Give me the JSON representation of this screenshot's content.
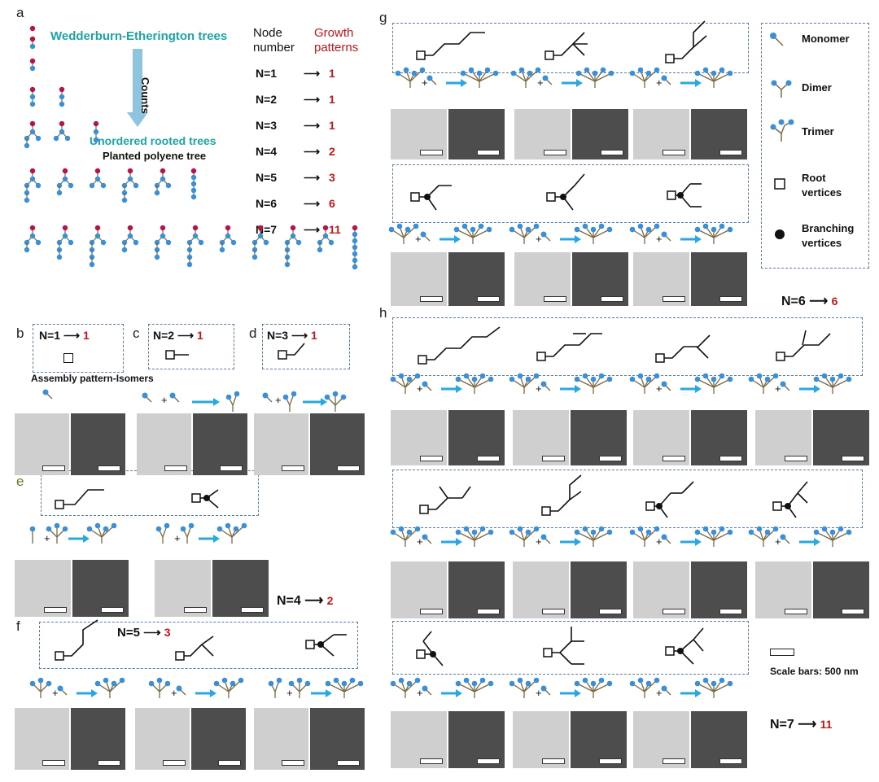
{
  "panels": {
    "a": "a",
    "b": "b",
    "c": "c",
    "d": "d",
    "e": "e",
    "f": "f",
    "g": "g",
    "h": "h"
  },
  "a": {
    "we_trees": "Wedderburn-Etherington trees",
    "counts": "Counts",
    "unordered": "Unordered rooted trees",
    "planted": "Planted polyene tree",
    "node_number_1": "Node",
    "node_number_2": "number",
    "growth_1": "Growth",
    "growth_2": "patterns",
    "rows": [
      {
        "n": "N=1",
        "v": "1"
      },
      {
        "n": "N=2",
        "v": "1"
      },
      {
        "n": "N=3",
        "v": "1"
      },
      {
        "n": "N=4",
        "v": "2"
      },
      {
        "n": "N=5",
        "v": "3"
      },
      {
        "n": "N=6",
        "v": "6"
      },
      {
        "n": "N=7",
        "v": "11"
      }
    ]
  },
  "b": {
    "n": "N=1",
    "v": "1",
    "caption": "Assembly pattern-Isomers"
  },
  "c": {
    "n": "N=2",
    "v": "1"
  },
  "d": {
    "n": "N=3",
    "v": "1"
  },
  "e": {
    "n": "N=4",
    "v": "2"
  },
  "f": {
    "n": "N=5",
    "v": "3"
  },
  "g": {
    "n": "N=6",
    "v": "6"
  },
  "h": {
    "n": "N=7",
    "v": "11"
  },
  "legend": {
    "monomer": "Monomer",
    "dimer": "Dimer",
    "trimer": "Trimer",
    "root_1": "Root",
    "root_2": "vertices",
    "branch_1": "Branching",
    "branch_2": "vertices"
  },
  "scale": "Scale bars: 500 nm",
  "colors": {
    "teal": "#1fa4a6",
    "red": "#c0171c",
    "node_blue": "#3a8fd6",
    "node_red": "#b8124a",
    "arrow_blue": "#29a8e0"
  }
}
